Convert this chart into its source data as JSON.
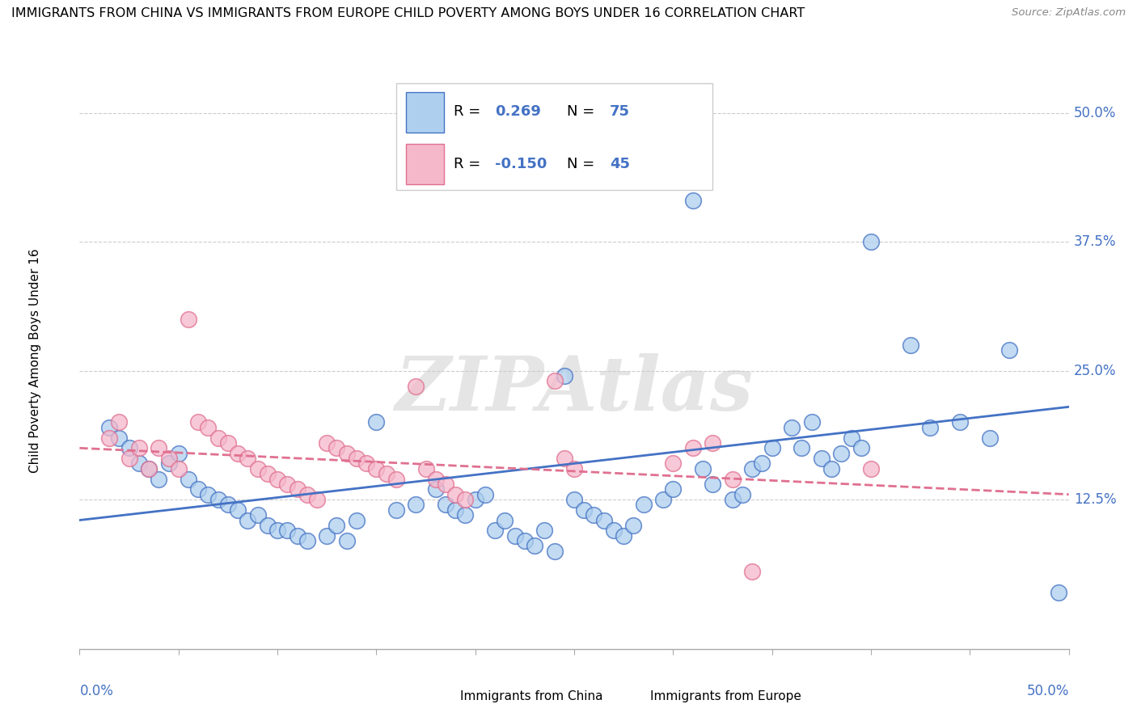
{
  "title": "IMMIGRANTS FROM CHINA VS IMMIGRANTS FROM EUROPE CHILD POVERTY AMONG BOYS UNDER 16 CORRELATION CHART",
  "source": "Source: ZipAtlas.com",
  "ylabel": "Child Poverty Among Boys Under 16",
  "xlim": [
    0.0,
    50.0
  ],
  "ylim": [
    -2.0,
    54.0
  ],
  "ytick_values": [
    12.5,
    25.0,
    37.5,
    50.0
  ],
  "ytick_labels": [
    "12.5%",
    "25.0%",
    "37.5%",
    "50.0%"
  ],
  "xtick_left_label": "0.0%",
  "xtick_right_label": "50.0%",
  "china_color": "#aecfee",
  "china_line_color": "#4472c4",
  "europe_color": "#f5b8cb",
  "europe_line_color": "#e07090",
  "china_R": "0.269",
  "china_N": "75",
  "europe_R": "-0.150",
  "europe_N": "45",
  "stat_color": "#4472c4",
  "legend_label_china": "Immigrants from China",
  "legend_label_europe": "Immigrants from Europe",
  "watermark": "ZIPAtlas",
  "china_scatter": [
    [
      1.5,
      19.5
    ],
    [
      2.0,
      18.5
    ],
    [
      2.5,
      17.5
    ],
    [
      3.0,
      16.0
    ],
    [
      3.5,
      15.5
    ],
    [
      4.0,
      14.5
    ],
    [
      4.5,
      16.0
    ],
    [
      5.0,
      17.0
    ],
    [
      5.5,
      14.5
    ],
    [
      6.0,
      13.5
    ],
    [
      6.5,
      13.0
    ],
    [
      7.0,
      12.5
    ],
    [
      7.5,
      12.0
    ],
    [
      8.0,
      11.5
    ],
    [
      8.5,
      10.5
    ],
    [
      9.0,
      11.0
    ],
    [
      9.5,
      10.0
    ],
    [
      10.0,
      9.5
    ],
    [
      10.5,
      9.5
    ],
    [
      11.0,
      9.0
    ],
    [
      11.5,
      8.5
    ],
    [
      12.5,
      9.0
    ],
    [
      13.0,
      10.0
    ],
    [
      13.5,
      8.5
    ],
    [
      14.0,
      10.5
    ],
    [
      15.0,
      20.0
    ],
    [
      16.0,
      11.5
    ],
    [
      17.0,
      12.0
    ],
    [
      18.0,
      13.5
    ],
    [
      18.5,
      12.0
    ],
    [
      19.0,
      11.5
    ],
    [
      19.5,
      11.0
    ],
    [
      20.0,
      12.5
    ],
    [
      20.5,
      13.0
    ],
    [
      21.0,
      9.5
    ],
    [
      21.5,
      10.5
    ],
    [
      22.0,
      9.0
    ],
    [
      22.5,
      8.5
    ],
    [
      23.0,
      8.0
    ],
    [
      23.5,
      9.5
    ],
    [
      24.0,
      7.5
    ],
    [
      24.5,
      24.5
    ],
    [
      25.0,
      12.5
    ],
    [
      25.5,
      11.5
    ],
    [
      26.0,
      11.0
    ],
    [
      26.5,
      10.5
    ],
    [
      27.0,
      9.5
    ],
    [
      27.5,
      9.0
    ],
    [
      28.0,
      10.0
    ],
    [
      28.5,
      12.0
    ],
    [
      29.5,
      12.5
    ],
    [
      30.0,
      13.5
    ],
    [
      31.0,
      41.5
    ],
    [
      31.5,
      15.5
    ],
    [
      32.0,
      14.0
    ],
    [
      33.0,
      12.5
    ],
    [
      33.5,
      13.0
    ],
    [
      34.0,
      15.5
    ],
    [
      34.5,
      16.0
    ],
    [
      35.0,
      17.5
    ],
    [
      36.0,
      19.5
    ],
    [
      36.5,
      17.5
    ],
    [
      37.0,
      20.0
    ],
    [
      37.5,
      16.5
    ],
    [
      38.0,
      15.5
    ],
    [
      38.5,
      17.0
    ],
    [
      39.0,
      18.5
    ],
    [
      39.5,
      17.5
    ],
    [
      40.0,
      37.5
    ],
    [
      42.0,
      27.5
    ],
    [
      43.0,
      19.5
    ],
    [
      44.5,
      20.0
    ],
    [
      46.0,
      18.5
    ],
    [
      47.0,
      27.0
    ],
    [
      49.5,
      3.5
    ]
  ],
  "europe_scatter": [
    [
      1.5,
      18.5
    ],
    [
      2.0,
      20.0
    ],
    [
      2.5,
      16.5
    ],
    [
      3.0,
      17.5
    ],
    [
      3.5,
      15.5
    ],
    [
      4.0,
      17.5
    ],
    [
      4.5,
      16.5
    ],
    [
      5.0,
      15.5
    ],
    [
      5.5,
      30.0
    ],
    [
      6.0,
      20.0
    ],
    [
      6.5,
      19.5
    ],
    [
      7.0,
      18.5
    ],
    [
      7.5,
      18.0
    ],
    [
      8.0,
      17.0
    ],
    [
      8.5,
      16.5
    ],
    [
      9.0,
      15.5
    ],
    [
      9.5,
      15.0
    ],
    [
      10.0,
      14.5
    ],
    [
      10.5,
      14.0
    ],
    [
      11.0,
      13.5
    ],
    [
      11.5,
      13.0
    ],
    [
      12.0,
      12.5
    ],
    [
      12.5,
      18.0
    ],
    [
      13.0,
      17.5
    ],
    [
      13.5,
      17.0
    ],
    [
      14.0,
      16.5
    ],
    [
      14.5,
      16.0
    ],
    [
      15.0,
      15.5
    ],
    [
      15.5,
      15.0
    ],
    [
      16.0,
      14.5
    ],
    [
      17.0,
      23.5
    ],
    [
      17.5,
      15.5
    ],
    [
      18.0,
      14.5
    ],
    [
      18.5,
      14.0
    ],
    [
      19.0,
      13.0
    ],
    [
      19.5,
      12.5
    ],
    [
      24.0,
      24.0
    ],
    [
      24.5,
      16.5
    ],
    [
      25.0,
      15.5
    ],
    [
      30.0,
      16.0
    ],
    [
      31.0,
      17.5
    ],
    [
      32.0,
      18.0
    ],
    [
      33.0,
      14.5
    ],
    [
      34.0,
      5.5
    ],
    [
      40.0,
      15.5
    ]
  ],
  "china_line_y0": 10.5,
  "china_line_y1": 21.5,
  "europe_line_y0": 17.5,
  "europe_line_y1": 13.0
}
